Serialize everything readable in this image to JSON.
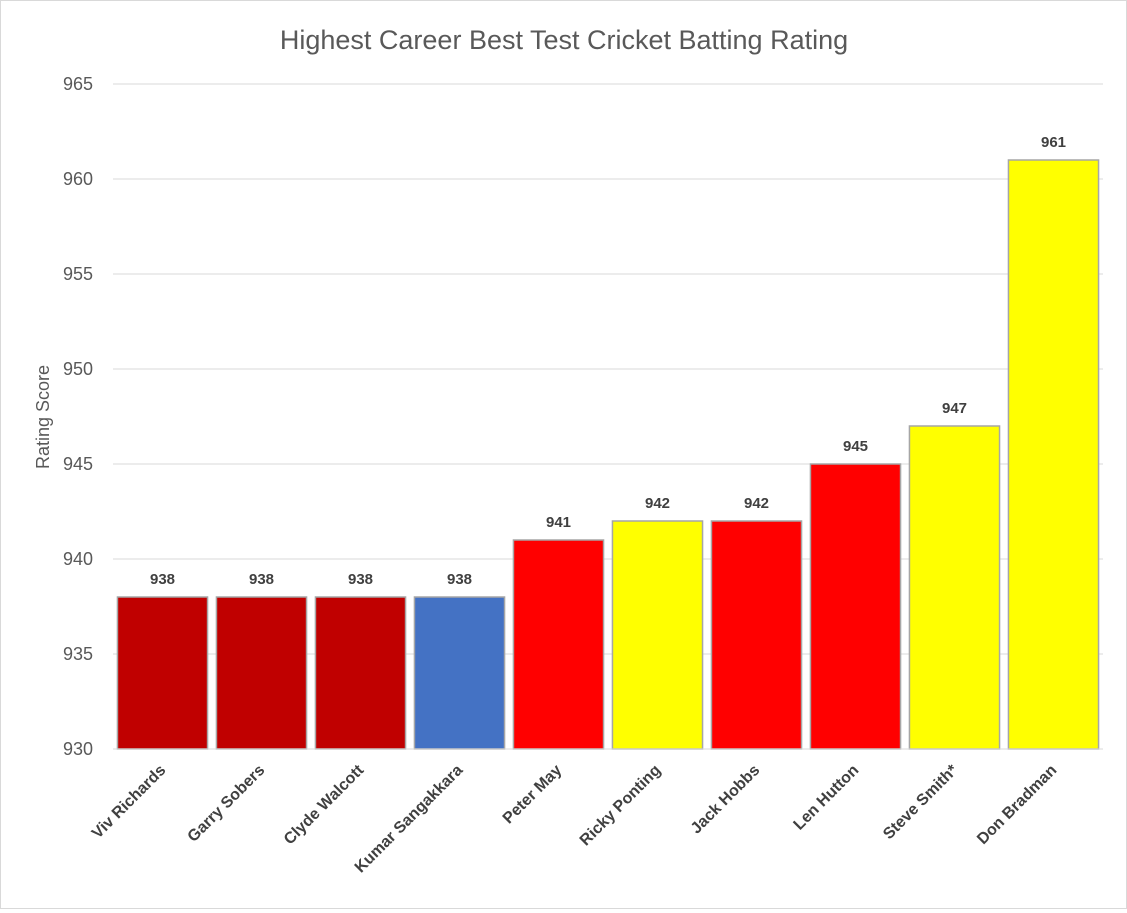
{
  "chart_data": {
    "type": "bar",
    "title": "Highest Career Best Test Cricket Batting Rating",
    "xlabel": "",
    "ylabel": "Rating Score",
    "ylim": [
      930,
      965
    ],
    "yticks": [
      930,
      935,
      940,
      945,
      950,
      955,
      960,
      965
    ],
    "grid": true,
    "legend": "none",
    "categories": [
      "Viv Richards",
      "Garry Sobers",
      "Clyde Walcott",
      "Kumar Sangakkara",
      "Peter May",
      "Ricky Ponting",
      "Jack Hobbs",
      "Len Hutton",
      "Steve Smith*",
      "Don Bradman"
    ],
    "values": [
      938,
      938,
      938,
      938,
      941,
      942,
      942,
      945,
      947,
      961
    ],
    "bar_colors": [
      "#c00000",
      "#c00000",
      "#c00000",
      "#4472c4",
      "#ff0000",
      "#ffff00",
      "#ff0000",
      "#ff0000",
      "#ffff00",
      "#ffff00"
    ]
  }
}
